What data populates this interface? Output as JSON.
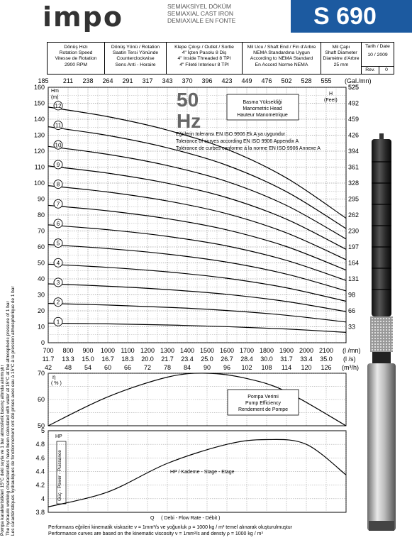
{
  "header": {
    "brand": "impo",
    "subtitle": [
      "SEMİAKSİYEL DÖKÜM",
      "SEMIAXIAL CAST IRON",
      "DEMIAXIALE EN FONTE"
    ],
    "model": "S 690",
    "date_label": "Tarih / Date",
    "date_value": "10 / 2009",
    "rev_label": "Rev.",
    "rev_value": "0",
    "spec_columns": [
      [
        "Dönüş Hızı",
        "Rotation Speed",
        "Vitesse de Rotation",
        "2900 RPM"
      ],
      [
        "Dönüş Yönü / Rotation",
        "Saatin Tersi Yönünde",
        "Counterclockwise",
        "Sens Anti - Horaire"
      ],
      [
        "Klepe Çıkışı / Outlet / Sortie",
        "4\" İçten Pasolu   8 Diş",
        "4\" Inside Threaded   8 TPI",
        "4\" Fileté Interieur   8 TPI"
      ],
      [
        "Mil Ucu / Shaft End / Fin d'Arbre",
        "NEMA Standardına Uygun",
        "According to NEMA Standard",
        "En Accord Norme NEMA"
      ],
      [
        "Mil Çapı",
        "Shaft Diameter",
        "Diamètre d'Arbre",
        "25 mm"
      ]
    ]
  },
  "chart_texts": {
    "hz": "50",
    "hz_unit": "Hz",
    "head_box": [
      "Basma Yüksekliği",
      "Manometric Head",
      "Hauteur Manometrique"
    ],
    "tolerance": [
      "Eğrilerin toleransı EN ISO 9906 Ek A ya uygundur",
      "Tolerance of curves according EN ISO 9906 Appendix A",
      "Tolérance de curbes conforme à la norme EN ISO 9906 Annexe A"
    ],
    "hm_label": [
      "Hm",
      "(m)"
    ],
    "h_feet_label": [
      "H",
      "(Feet)"
    ],
    "gal_unit": "(Gal./mn)",
    "lmin_unit": "(l /mn)",
    "ls_unit": "(l /s)",
    "m3h_unit": "(m³/h)",
    "eff_label": [
      "η",
      "( % )"
    ],
    "eff_box": [
      "Pompa Verimi",
      "Pump Efficiency",
      "Rendement de Pompe"
    ],
    "hp_axis": [
      "HP",
      "Güç - Power - Puissance"
    ],
    "hp_curve_label": "HP / Kademe - Stage - Etage",
    "q_label": "Q     ( Debi - Flow Rate - Débit )",
    "side_notes": [
      "Pompa karakteristikleri 15°C deki suyla ve 1 bar atmosferik basınç altında alınmıştır",
      "The hydraulic working characteristics have been calculated with water at 15°C at the atmospheric pressure of 1 bar",
      "Les caractéristiques hydrauliques de fonctionnement ont été prises avec eau à 15°C à la pression atmosphérique de 1 bar"
    ],
    "footer": [
      "Performans eğrileri kinematik viskozite ν = 1mm²/s ve yoğunluk ρ = 1000 kg / m³ temel alınarak oluşturulmuştur",
      "Performance curves are based on the kinematic viscosity ν = 1mm²/s and densty ρ = 1000 kg / m³"
    ]
  },
  "chart_data": [
    {
      "type": "line",
      "name": "head",
      "xlabel": "Q (l/mn)",
      "ylabel": "Hm (m)",
      "xlim": [
        700,
        2200
      ],
      "ylim": [
        0,
        160
      ],
      "grid": true,
      "x_ticks": [
        700,
        800,
        900,
        1000,
        1100,
        1200,
        1300,
        1400,
        1500,
        1600,
        1700,
        1800,
        1900,
        2000,
        2100
      ],
      "x_ticks_ls": [
        "11.7",
        "13.3",
        "15.0",
        "16.7",
        "18.3",
        "20.0",
        "21.7",
        "23.4",
        "25.0",
        "26.7",
        "28.4",
        "30.0",
        "31.7",
        "33.4",
        "35.0"
      ],
      "x_ticks_m3h": [
        "42",
        "48",
        "54",
        "60",
        "66",
        "72",
        "78",
        "84",
        "90",
        "96",
        "102",
        "108",
        "114",
        "120",
        "126"
      ],
      "x_ticks_gal": [
        "185",
        "211",
        "238",
        "264",
        "291",
        "317",
        "343",
        "370",
        "396",
        "423",
        "449",
        "476",
        "502",
        "528",
        "555"
      ],
      "y_ticks": [
        0,
        10,
        20,
        30,
        40,
        50,
        60,
        70,
        80,
        90,
        100,
        110,
        120,
        130,
        140,
        150,
        160
      ],
      "y_ticks_feet": [
        "33",
        "66",
        "98",
        "131",
        "164",
        "197",
        "230",
        "262",
        "295",
        "328",
        "361",
        "394",
        "426",
        "459",
        "492",
        "525"
      ],
      "x": [
        700,
        1000,
        1300,
        1600,
        1900,
        2200
      ],
      "series": [
        {
          "name": "1",
          "values": [
            12.3,
            11.8,
            11.1,
            10.1,
            8.6,
            6.5
          ]
        },
        {
          "name": "2",
          "values": [
            24.6,
            23.6,
            22.2,
            20.2,
            17.2,
            13.0
          ]
        },
        {
          "name": "3",
          "values": [
            36.9,
            35.4,
            33.3,
            30.3,
            25.8,
            19.5
          ]
        },
        {
          "name": "4",
          "values": [
            49.2,
            47.2,
            44.4,
            40.4,
            34.4,
            26.0
          ]
        },
        {
          "name": "5",
          "values": [
            61.5,
            59.0,
            55.5,
            50.5,
            43.0,
            32.5
          ]
        },
        {
          "name": "6",
          "values": [
            73.8,
            70.8,
            66.6,
            60.6,
            51.6,
            39.0
          ]
        },
        {
          "name": "7",
          "values": [
            86.1,
            82.6,
            77.7,
            70.7,
            60.2,
            45.5
          ]
        },
        {
          "name": "8",
          "values": [
            98.4,
            94.4,
            88.8,
            80.8,
            68.8,
            52.0
          ]
        },
        {
          "name": "9",
          "values": [
            110.7,
            106.2,
            99.9,
            90.9,
            77.4,
            58.5
          ]
        },
        {
          "name": "10",
          "values": [
            123.0,
            118.0,
            111.0,
            101.0,
            86.0,
            65.0
          ]
        },
        {
          "name": "11",
          "values": [
            135.3,
            129.8,
            122.1,
            111.1,
            94.6,
            71.5
          ]
        },
        {
          "name": "12",
          "values": [
            147.6,
            141.6,
            133.2,
            121.2,
            103.2,
            78.0
          ]
        }
      ]
    },
    {
      "type": "line",
      "name": "efficiency",
      "ylabel": "η (%)",
      "xlim": [
        700,
        2200
      ],
      "ylim": [
        50,
        70
      ],
      "y_ticks": [
        50,
        60,
        70
      ],
      "x": [
        700,
        1000,
        1300,
        1500,
        1700,
        1900,
        2200
      ],
      "values": [
        50,
        61,
        68.5,
        70,
        68,
        63,
        50
      ]
    },
    {
      "type": "line",
      "name": "power",
      "ylabel": "HP",
      "xlim": [
        700,
        2200
      ],
      "ylim": [
        3.8,
        5.0
      ],
      "y_ticks": [
        3.8,
        4,
        4.2,
        4.4,
        4.6,
        4.8,
        5
      ],
      "x": [
        700,
        1000,
        1300,
        1600,
        1800,
        2000,
        2200
      ],
      "values": [
        3.88,
        4.1,
        4.52,
        4.8,
        4.87,
        4.8,
        4.35
      ]
    }
  ]
}
